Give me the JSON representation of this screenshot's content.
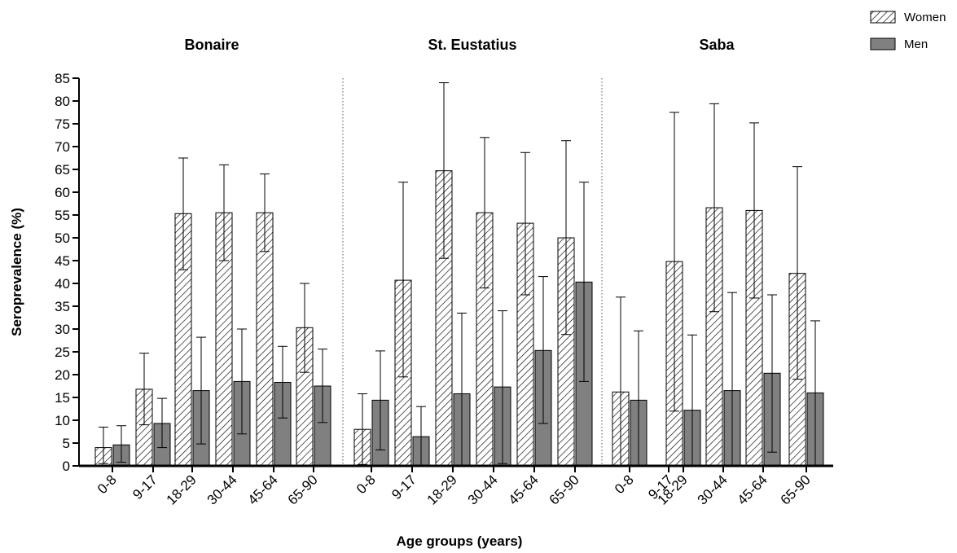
{
  "chart_data": {
    "type": "bar",
    "ylabel": "Seroprevalence (%)",
    "xlabel": "Age groups (years)",
    "ylim": [
      0,
      85
    ],
    "yticks": [
      0,
      5,
      10,
      15,
      20,
      25,
      30,
      35,
      40,
      45,
      50,
      55,
      60,
      65,
      70,
      75,
      80,
      85
    ],
    "categories": [
      "0-8",
      "9-17",
      "18-29",
      "30-44",
      "45-64",
      "65-90"
    ],
    "legend": {
      "placement": "top-right",
      "items": [
        {
          "label": "Women",
          "pattern": "hatched"
        },
        {
          "label": "Men",
          "color": "#808080"
        }
      ]
    },
    "colors": {
      "men": "#808080",
      "women_hatch": "#000000",
      "axis": "#000000"
    },
    "panels": [
      {
        "title": "Bonaire",
        "series": [
          {
            "name": "Women",
            "values": [
              4.0,
              16.8,
              55.3,
              55.5,
              55.5,
              30.3
            ],
            "error_low": [
              0.5,
              9.0,
              43.0,
              45.0,
              47.0,
              20.5
            ],
            "error_high": [
              8.5,
              24.7,
              67.5,
              66.0,
              64.0,
              40.0
            ]
          },
          {
            "name": "Men",
            "values": [
              4.6,
              9.3,
              16.5,
              18.5,
              18.3,
              17.5
            ],
            "error_low": [
              0.8,
              4.0,
              4.8,
              7.0,
              10.5,
              9.5
            ],
            "error_high": [
              8.8,
              14.8,
              28.2,
              30.0,
              26.2,
              25.6
            ]
          }
        ]
      },
      {
        "title": "St. Eustatius",
        "series": [
          {
            "name": "Women",
            "values": [
              8.0,
              40.7,
              64.7,
              55.5,
              53.2,
              50.0
            ],
            "error_low": [
              0.3,
              19.5,
              45.5,
              39.0,
              37.5,
              28.8
            ],
            "error_high": [
              15.8,
              62.2,
              84.0,
              72.0,
              68.7,
              71.3
            ]
          },
          {
            "name": "Men",
            "values": [
              14.4,
              6.4,
              15.8,
              17.3,
              25.3,
              40.3
            ],
            "error_low": [
              3.5,
              0.0,
              0.0,
              0.5,
              9.3,
              18.5
            ],
            "error_high": [
              25.2,
              13.0,
              33.5,
              34.0,
              41.5,
              62.2
            ]
          }
        ]
      },
      {
        "title": "Saba",
        "series": [
          {
            "name": "Women",
            "values": [
              16.2,
              null,
              44.8,
              56.6,
              56.0,
              42.2
            ],
            "error_low": [
              0.0,
              null,
              12.0,
              33.8,
              36.8,
              19.0
            ],
            "error_high": [
              37.0,
              null,
              77.5,
              79.4,
              75.2,
              65.6
            ]
          },
          {
            "name": "Men",
            "values": [
              14.4,
              null,
              12.2,
              16.5,
              20.3,
              16.0
            ],
            "error_low": [
              0.0,
              null,
              0.0,
              0.0,
              3.0,
              0.0
            ],
            "error_high": [
              29.6,
              null,
              28.7,
              38.0,
              37.5,
              31.8
            ]
          }
        ]
      }
    ]
  }
}
